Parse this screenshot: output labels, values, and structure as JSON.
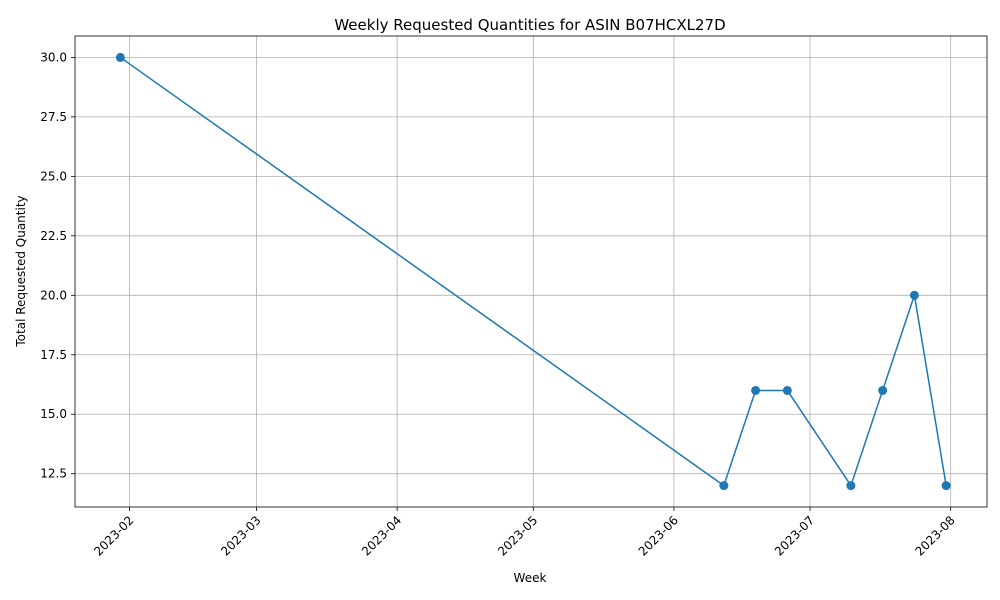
{
  "chart_data": {
    "type": "line",
    "title": "Weekly Requested Quantities for ASIN B07HCXL27D",
    "xlabel": "Week",
    "ylabel": "Total Requested Quantity",
    "x_tick_labels": [
      "2023-02",
      "2023-03",
      "2023-04",
      "2023-05",
      "2023-06",
      "2023-07",
      "2023-08"
    ],
    "x_ticks": [
      "2023-02-01",
      "2023-03-01",
      "2023-04-01",
      "2023-05-01",
      "2023-06-01",
      "2023-07-01",
      "2023-08-01"
    ],
    "y_ticks": [
      12.5,
      15.0,
      17.5,
      20.0,
      22.5,
      25.0,
      27.5,
      30.0
    ],
    "y_tick_labels": [
      "12.5",
      "15.0",
      "17.5",
      "20.0",
      "22.5",
      "25.0",
      "27.5",
      "30.0"
    ],
    "xlim": [
      "2023-01-20",
      "2023-08-09"
    ],
    "ylim": [
      11.1,
      30.9
    ],
    "grid": true,
    "line_color": "#1f77b4",
    "marker": "circle",
    "series": [
      {
        "x": [
          "2023-01-30",
          "2023-06-12",
          "2023-06-19",
          "2023-06-26",
          "2023-07-10",
          "2023-07-17",
          "2023-07-24",
          "2023-07-31"
        ],
        "values": [
          30,
          12,
          16,
          16,
          12,
          16,
          20,
          12
        ]
      }
    ]
  }
}
